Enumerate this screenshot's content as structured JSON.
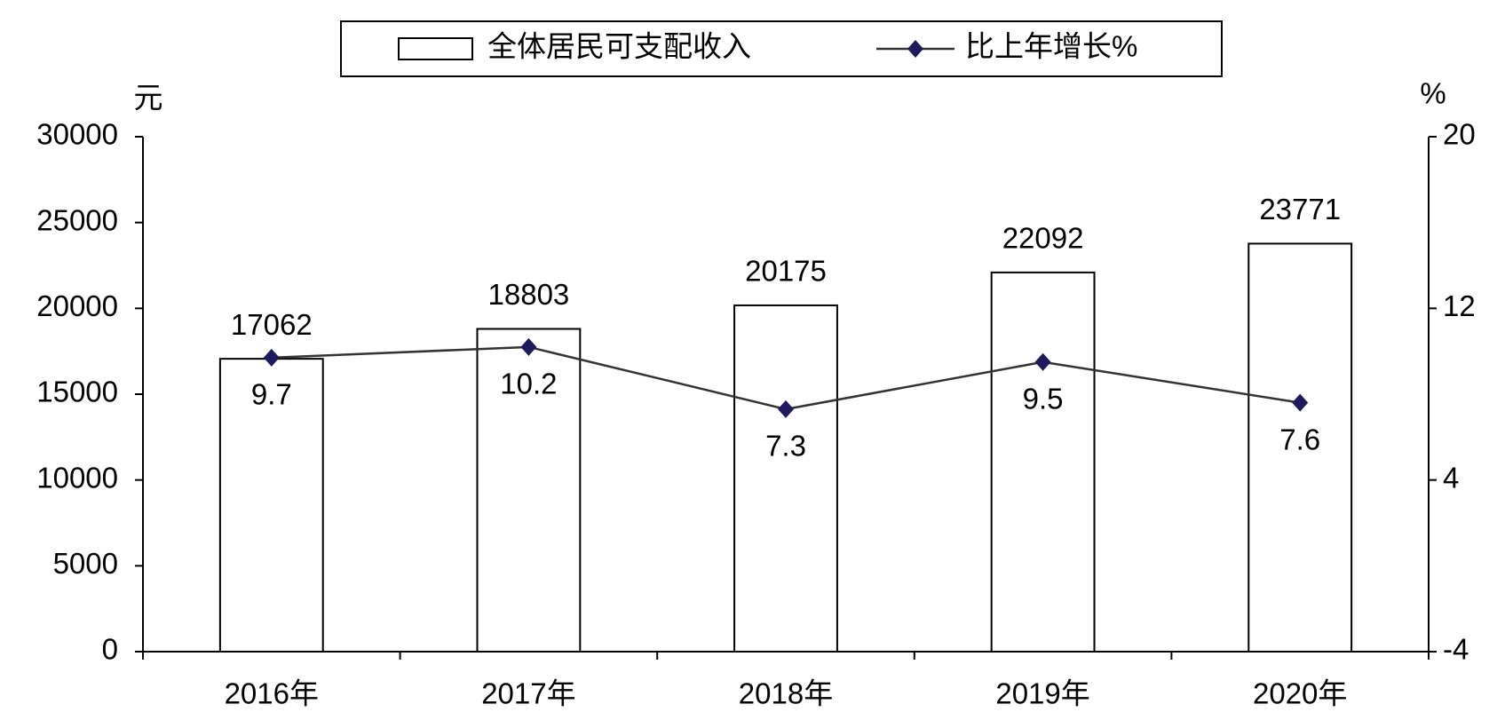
{
  "chart_data": {
    "type": "bar",
    "categories": [
      "2016年",
      "2017年",
      "2018年",
      "2019年",
      "2020年"
    ],
    "series": [
      {
        "name": "全体居民可支配收入",
        "type": "bar",
        "color": "#ffffff",
        "edgecolor": "#000000",
        "values": [
          17062,
          18803,
          20175,
          22092,
          23771
        ]
      },
      {
        "name": "比上年增长%",
        "type": "line",
        "axis": "y2",
        "color": "#333333",
        "marker_color": "#1f1a5e",
        "values": [
          9.7,
          10.2,
          7.3,
          9.5,
          7.6
        ]
      }
    ],
    "ylabel": "元",
    "y2label": "%",
    "ylim": [
      0,
      30000
    ],
    "yticks": [
      0,
      5000,
      10000,
      15000,
      20000,
      25000,
      30000
    ],
    "y2lim": [
      -4,
      20
    ],
    "y2ticks": [
      -4,
      4,
      12,
      20
    ],
    "legend": "top",
    "grid": false
  }
}
